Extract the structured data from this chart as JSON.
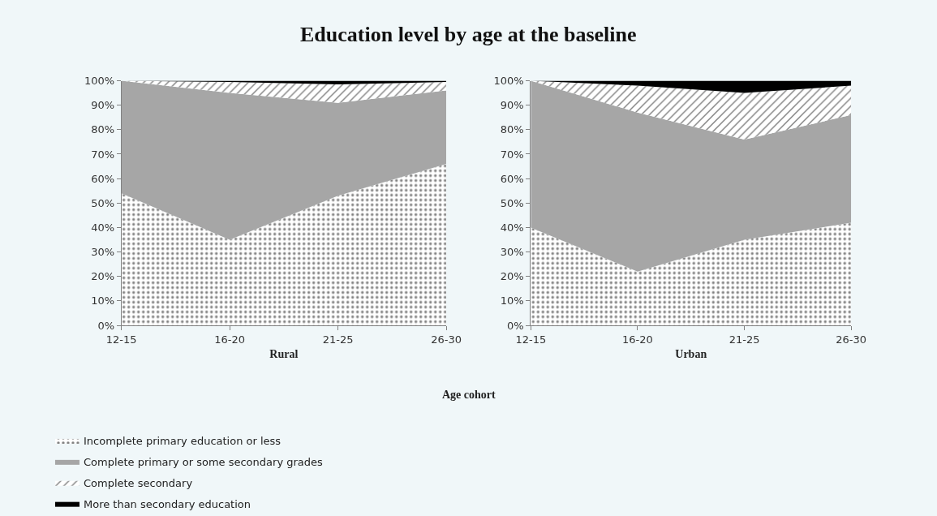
{
  "chart_data": [
    {
      "type": "area",
      "stacked": true,
      "title": "Education level by age at the baseline",
      "xlabel": "Rural",
      "annotations": [
        "Age cohort"
      ],
      "legend": "bottom",
      "grid": false,
      "categories": [
        "12-15",
        "16-20",
        "21-25",
        "26-30"
      ],
      "ylim": [
        0,
        100
      ],
      "yticks": [
        {
          "value": 0,
          "label": "0%"
        },
        {
          "value": 10,
          "label": "10%"
        },
        {
          "value": 20,
          "label": "20%"
        },
        {
          "value": 30,
          "label": "30%"
        },
        {
          "value": 40,
          "label": "40%"
        },
        {
          "value": 50,
          "label": "50%"
        },
        {
          "value": 60,
          "label": "60%"
        },
        {
          "value": 70,
          "label": "70%"
        },
        {
          "value": 80,
          "label": "80%"
        },
        {
          "value": 90,
          "label": "90%"
        },
        {
          "value": 100,
          "label": "100%"
        }
      ],
      "series": [
        {
          "name": "Incomplete primary education or less",
          "color": "#ffffff",
          "values": [
            54,
            35,
            53,
            66
          ]
        },
        {
          "name": "Complete primary or some secondary grades",
          "color": "#a6a6a6",
          "values": [
            46,
            60,
            38,
            30
          ]
        },
        {
          "name": "Complete secondary",
          "color": "#ffffff",
          "values": [
            0,
            4.5,
            7.5,
            3.5
          ]
        },
        {
          "name": "More than secondary education",
          "color": "#000000",
          "values": [
            0,
            0.5,
            1.5,
            0.5
          ]
        }
      ]
    },
    {
      "type": "area",
      "stacked": true,
      "xlabel": "Urban",
      "legend": false,
      "grid": false,
      "categories": [
        "12-15",
        "16-20",
        "21-25",
        "26-30"
      ],
      "ylim": [
        0,
        100
      ],
      "yticks": [
        {
          "value": 0,
          "label": "0%"
        },
        {
          "value": 10,
          "label": "10%"
        },
        {
          "value": 20,
          "label": "20%"
        },
        {
          "value": 30,
          "label": "30%"
        },
        {
          "value": 40,
          "label": "40%"
        },
        {
          "value": 50,
          "label": "50%"
        },
        {
          "value": 60,
          "label": "60%"
        },
        {
          "value": 70,
          "label": "70%"
        },
        {
          "value": 80,
          "label": "80%"
        },
        {
          "value": 90,
          "label": "90%"
        },
        {
          "value": 100,
          "label": "100%"
        }
      ],
      "series": [
        {
          "color": "#ffffff",
          "values": [
            40,
            22,
            35,
            42
          ]
        },
        {
          "color": "#a6a6a6",
          "values": [
            60,
            65,
            41,
            44
          ]
        },
        {
          "color": "#ffffff",
          "values": [
            0,
            11,
            19,
            12
          ]
        },
        {
          "color": "#000000",
          "values": [
            0,
            2,
            5,
            2
          ]
        }
      ]
    }
  ]
}
